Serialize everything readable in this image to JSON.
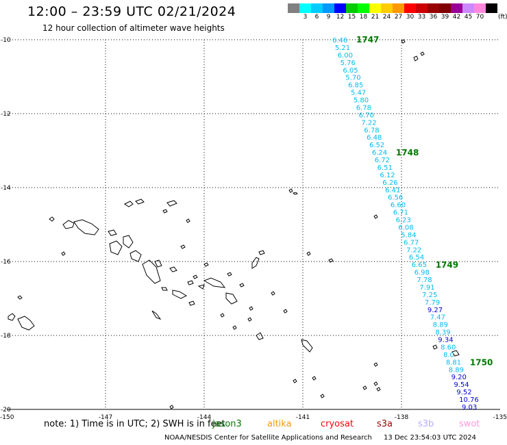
{
  "header": {
    "title": "12:00 – 23:59 UTC 02/21/2024",
    "subtitle": "12 hour collection of altimeter wave heights"
  },
  "legend": {
    "unit": "(ft)",
    "bins": [
      {
        "label": "",
        "color": "#808080"
      },
      {
        "label": "3",
        "color": "#00ffff"
      },
      {
        "label": "6",
        "color": "#00ccff"
      },
      {
        "label": "9",
        "color": "#0099ff"
      },
      {
        "label": "12",
        "color": "#0000ff"
      },
      {
        "label": "15",
        "color": "#00cc00"
      },
      {
        "label": "18",
        "color": "#00ff00"
      },
      {
        "label": "21",
        "color": "#ffff00"
      },
      {
        "label": "24",
        "color": "#ffcc00"
      },
      {
        "label": "27",
        "color": "#ff9900"
      },
      {
        "label": "30",
        "color": "#ff0000"
      },
      {
        "label": "33",
        "color": "#cc0000"
      },
      {
        "label": "36",
        "color": "#990000"
      },
      {
        "label": "39",
        "color": "#800000"
      },
      {
        "label": "42",
        "color": "#990099"
      },
      {
        "label": "45",
        "color": "#cc88ff"
      },
      {
        "label": "70",
        "color": "#ff88dd"
      },
      {
        "label": "",
        "color": "#000000"
      }
    ]
  },
  "map": {
    "lat_range": [
      -20,
      -10
    ],
    "lon_range": [
      -150,
      -135
    ],
    "lat_ticks": [
      "-10",
      "-12",
      "-14",
      "-16",
      "-18",
      "-20"
    ],
    "lon_ticks": [
      "-150",
      "-147",
      "-144",
      "-141",
      "-138",
      "-135"
    ],
    "gridlines": true,
    "track": {
      "text_color": "#00bbee",
      "high_color": "#0000cc",
      "time_color": "#007700",
      "points": [
        {
          "v": "6.46"
        },
        {
          "v": "5.21"
        },
        {
          "v": "6.00"
        },
        {
          "v": "5.76"
        },
        {
          "v": "6.05"
        },
        {
          "v": "5.70"
        },
        {
          "v": "6.85"
        },
        {
          "v": "5.47"
        },
        {
          "v": "5.80"
        },
        {
          "v": "6.78"
        },
        {
          "v": "6.70"
        },
        {
          "v": "7.22"
        },
        {
          "v": "6.78"
        },
        {
          "v": "6.48"
        },
        {
          "v": "6.52"
        },
        {
          "v": "6.24"
        },
        {
          "v": "6.72"
        },
        {
          "v": "6.51"
        },
        {
          "v": "6.12"
        },
        {
          "v": "6.26"
        },
        {
          "v": "6.41"
        },
        {
          "v": "6.56"
        },
        {
          "v": "6.60"
        },
        {
          "v": "6.71"
        },
        {
          "v": "6.23"
        },
        {
          "v": "6.08"
        },
        {
          "v": "5.84"
        },
        {
          "v": "6.77"
        },
        {
          "v": "7.22"
        },
        {
          "v": "6.54"
        },
        {
          "v": "6.65"
        },
        {
          "v": "6.98"
        },
        {
          "v": "7.78"
        },
        {
          "v": "7.91"
        },
        {
          "v": "7.25"
        },
        {
          "v": "7.79"
        },
        {
          "v": "9.27"
        },
        {
          "v": "7.47"
        },
        {
          "v": "8.89"
        },
        {
          "v": "8.39"
        },
        {
          "v": "9.34"
        },
        {
          "v": "8.60"
        },
        {
          "v": "8.0"
        },
        {
          "v": "8.81"
        },
        {
          "v": "8.89"
        },
        {
          "v": "9.20"
        },
        {
          "v": "9.54"
        },
        {
          "v": "9.52"
        },
        {
          "v": "10.76"
        },
        {
          "v": "9.03"
        }
      ],
      "time_labels": [
        {
          "index": 0,
          "text": "1747"
        },
        {
          "index": 15,
          "text": "1748"
        },
        {
          "index": 30,
          "text": "1749"
        },
        {
          "index": 43,
          "text": "1750"
        }
      ]
    }
  },
  "note": {
    "text": "note:  1) Time is in UTC; 2) SWH is in feet",
    "satellites": [
      {
        "name": "jason3",
        "color": "#007700"
      },
      {
        "name": "altika",
        "color": "#ff9900"
      },
      {
        "name": "cryosat",
        "color": "#ff0000"
      },
      {
        "name": "s3a",
        "color": "#990000"
      },
      {
        "name": "s3b",
        "color": "#bbaaff"
      },
      {
        "name": "swot",
        "color": "#ff99dd"
      }
    ]
  },
  "footer": {
    "credit": "NOAA/NESDIS Center for Satellite Applications and Research",
    "timestamp": "13 Dec 23:54:03 UTC 2024"
  }
}
